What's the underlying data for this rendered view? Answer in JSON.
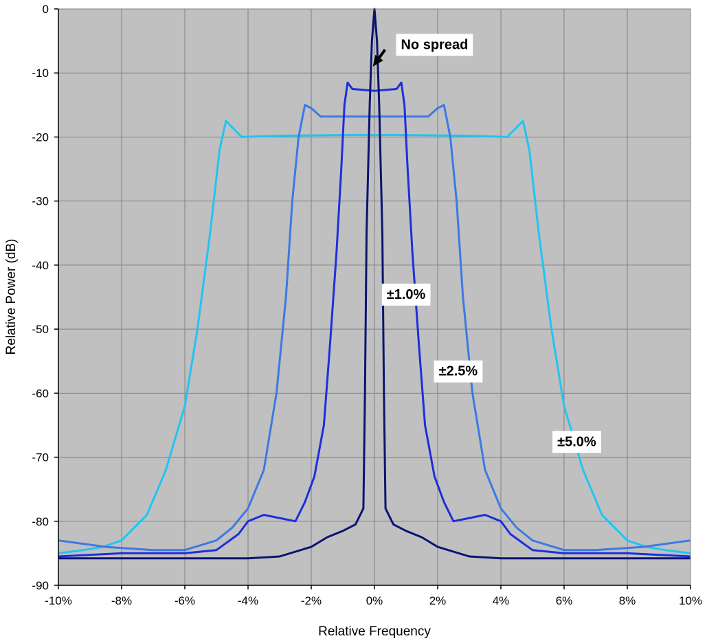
{
  "chart_data": {
    "type": "line",
    "title": "",
    "xlabel": "Relative Frequency",
    "ylabel": "Relative Power (dB)",
    "xlim": [
      -10,
      10
    ],
    "ylim": [
      -90,
      0
    ],
    "x_unit": "%",
    "y_unit": "dB",
    "grid": true,
    "background": "#c0c0c0",
    "x_ticks": [
      -10,
      -8,
      -6,
      -4,
      -2,
      0,
      2,
      4,
      6,
      8,
      10
    ],
    "x_tick_labels": [
      "-10%",
      "-8%",
      "-6%",
      "-4%",
      "-2%",
      "0%",
      "2%",
      "4%",
      "6%",
      "8%",
      "10%"
    ],
    "y_ticks": [
      0,
      -10,
      -20,
      -30,
      -40,
      -50,
      -60,
      -70,
      -80,
      -90
    ],
    "y_tick_labels": [
      "0",
      "-10",
      "-20",
      "-30",
      "-40",
      "-50",
      "-60",
      "-70",
      "-80",
      "-90"
    ],
    "series": [
      {
        "label": "±5.0%",
        "color": "#22c4f0",
        "points": [
          [
            -10,
            -85
          ],
          [
            -9.2,
            -84.5
          ],
          [
            -8.6,
            -84
          ],
          [
            -8,
            -83
          ],
          [
            -7.2,
            -79
          ],
          [
            -6.6,
            -72
          ],
          [
            -6,
            -62
          ],
          [
            -5.6,
            -50
          ],
          [
            -5.2,
            -35
          ],
          [
            -4.9,
            -22
          ],
          [
            -4.7,
            -17.5
          ],
          [
            -4.5,
            -18.5
          ],
          [
            -4.2,
            -20
          ],
          [
            -3,
            -19.8
          ],
          [
            -1,
            -19.7
          ],
          [
            0,
            -19.7
          ],
          [
            1,
            -19.7
          ],
          [
            3,
            -19.8
          ],
          [
            4.2,
            -20
          ],
          [
            4.5,
            -18.5
          ],
          [
            4.7,
            -17.5
          ],
          [
            4.9,
            -22
          ],
          [
            5.2,
            -35
          ],
          [
            5.6,
            -50
          ],
          [
            6,
            -62
          ],
          [
            6.6,
            -72
          ],
          [
            7.2,
            -79
          ],
          [
            8,
            -83
          ],
          [
            8.6,
            -84
          ],
          [
            9.2,
            -84.5
          ],
          [
            10,
            -85
          ]
        ]
      },
      {
        "label": "±2.5%",
        "color": "#3a7ae4",
        "points": [
          [
            -10,
            -83
          ],
          [
            -8.5,
            -84
          ],
          [
            -7,
            -84.5
          ],
          [
            -6,
            -84.5
          ],
          [
            -5,
            -83
          ],
          [
            -4.5,
            -81
          ],
          [
            -4,
            -78
          ],
          [
            -3.5,
            -72
          ],
          [
            -3.1,
            -60
          ],
          [
            -2.8,
            -45
          ],
          [
            -2.6,
            -30
          ],
          [
            -2.4,
            -20
          ],
          [
            -2.2,
            -15
          ],
          [
            -2,
            -15.5
          ],
          [
            -1.7,
            -16.8
          ],
          [
            0,
            -16.8
          ],
          [
            1.7,
            -16.8
          ],
          [
            2,
            -15.5
          ],
          [
            2.2,
            -15
          ],
          [
            2.4,
            -20
          ],
          [
            2.6,
            -30
          ],
          [
            2.8,
            -45
          ],
          [
            3.1,
            -60
          ],
          [
            3.5,
            -72
          ],
          [
            4,
            -78
          ],
          [
            4.5,
            -81
          ],
          [
            5,
            -83
          ],
          [
            6,
            -84.5
          ],
          [
            7,
            -84.5
          ],
          [
            8.5,
            -84
          ],
          [
            10,
            -83
          ]
        ]
      },
      {
        "label": "±1.0%",
        "color": "#1e2edc",
        "points": [
          [
            -10,
            -85.5
          ],
          [
            -8,
            -85
          ],
          [
            -6,
            -85
          ],
          [
            -5,
            -84.5
          ],
          [
            -4.3,
            -82
          ],
          [
            -4,
            -80
          ],
          [
            -3.5,
            -79
          ],
          [
            -3,
            -79.5
          ],
          [
            -2.5,
            -80
          ],
          [
            -2.2,
            -77
          ],
          [
            -1.9,
            -73
          ],
          [
            -1.6,
            -65
          ],
          [
            -1.4,
            -52
          ],
          [
            -1.2,
            -38
          ],
          [
            -1.05,
            -25
          ],
          [
            -0.95,
            -15
          ],
          [
            -0.85,
            -11.5
          ],
          [
            -0.7,
            -12.5
          ],
          [
            0,
            -12.8
          ],
          [
            0.7,
            -12.5
          ],
          [
            0.85,
            -11.5
          ],
          [
            0.95,
            -15
          ],
          [
            1.05,
            -25
          ],
          [
            1.2,
            -38
          ],
          [
            1.4,
            -52
          ],
          [
            1.6,
            -65
          ],
          [
            1.9,
            -73
          ],
          [
            2.2,
            -77
          ],
          [
            2.5,
            -80
          ],
          [
            3,
            -79.5
          ],
          [
            3.5,
            -79
          ],
          [
            4,
            -80
          ],
          [
            4.3,
            -82
          ],
          [
            5,
            -84.5
          ],
          [
            6,
            -85
          ],
          [
            8,
            -85
          ],
          [
            10,
            -85.5
          ]
        ]
      },
      {
        "label": "No spread",
        "color": "#0a1470",
        "points": [
          [
            -10,
            -85.8
          ],
          [
            -4,
            -85.8
          ],
          [
            -3,
            -85.5
          ],
          [
            -2,
            -84
          ],
          [
            -1.5,
            -82.5
          ],
          [
            -1,
            -81.5
          ],
          [
            -0.6,
            -80.5
          ],
          [
            -0.35,
            -78
          ],
          [
            -0.3,
            -60
          ],
          [
            -0.25,
            -35
          ],
          [
            -0.15,
            -15
          ],
          [
            -0.08,
            -5
          ],
          [
            0,
            0
          ],
          [
            0.08,
            -5
          ],
          [
            0.15,
            -15
          ],
          [
            0.25,
            -35
          ],
          [
            0.3,
            -60
          ],
          [
            0.35,
            -78
          ],
          [
            0.6,
            -80.5
          ],
          [
            1,
            -81.5
          ],
          [
            1.5,
            -82.5
          ],
          [
            2,
            -84
          ],
          [
            3,
            -85.5
          ],
          [
            4,
            -85.8
          ],
          [
            10,
            -85.8
          ]
        ]
      }
    ],
    "annotations": [
      {
        "text": "No spread",
        "x": 1.9,
        "y": -5.5,
        "arrow_to": [
          -0.05,
          -9
        ]
      },
      {
        "text": "±1.0%",
        "x": 1.0,
        "y": -44.5
      },
      {
        "text": "±2.5%",
        "x": 2.65,
        "y": -56.5
      },
      {
        "text": "±5.0%",
        "x": 6.4,
        "y": -67.5
      }
    ]
  }
}
